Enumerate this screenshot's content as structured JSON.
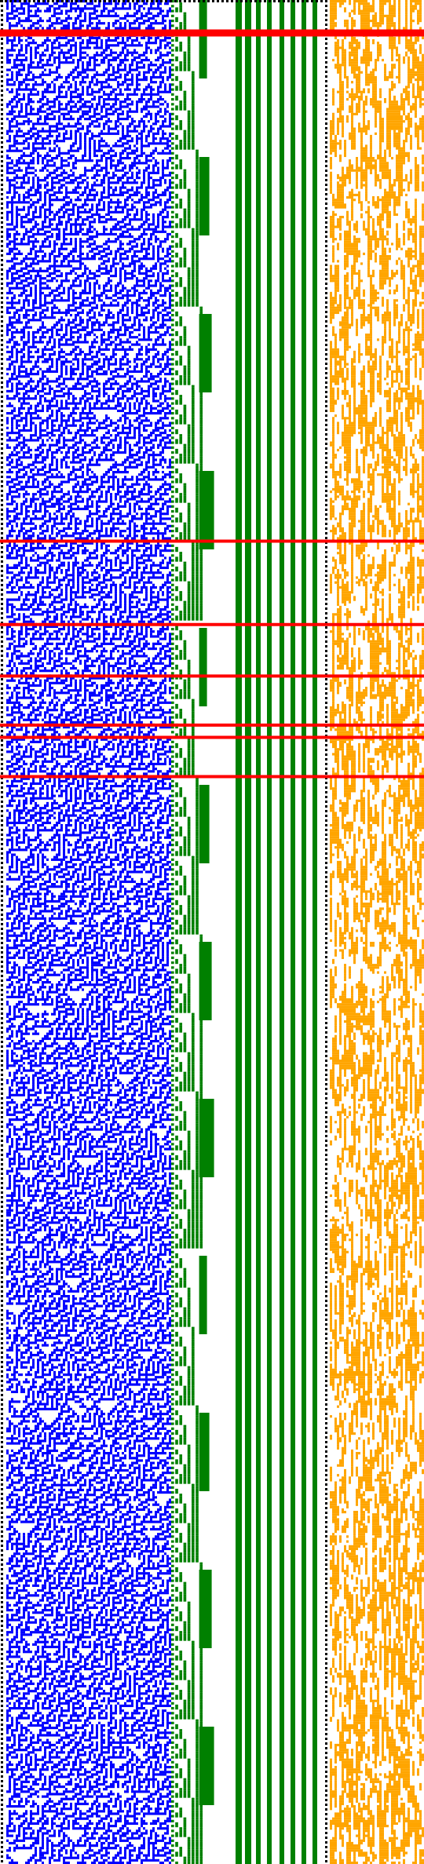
{
  "colors": {
    "background": "#ffffff",
    "left_cells": "#0000ff",
    "counter_cells": "#008000",
    "right_cells": "#ffa500",
    "marker_lines": "#ff0000",
    "border_dots": "#000000"
  },
  "panels": [
    {
      "name": "left-cell-panel",
      "fill_fraction": 0.5
    },
    {
      "name": "counter-panel",
      "pattern": "binary-counter"
    },
    {
      "name": "right-cell-panel",
      "fill_fraction": 0.7
    }
  ],
  "marker_rows": [
    {
      "row": 12,
      "weight": "heavy"
    },
    {
      "row": 220,
      "weight": "light"
    },
    {
      "row": 254,
      "weight": "light"
    },
    {
      "row": 275,
      "weight": "light"
    },
    {
      "row": 295,
      "weight": "light"
    },
    {
      "row": 300,
      "weight": "light"
    },
    {
      "row": 316,
      "weight": "light"
    }
  ],
  "total_rows": 760
}
